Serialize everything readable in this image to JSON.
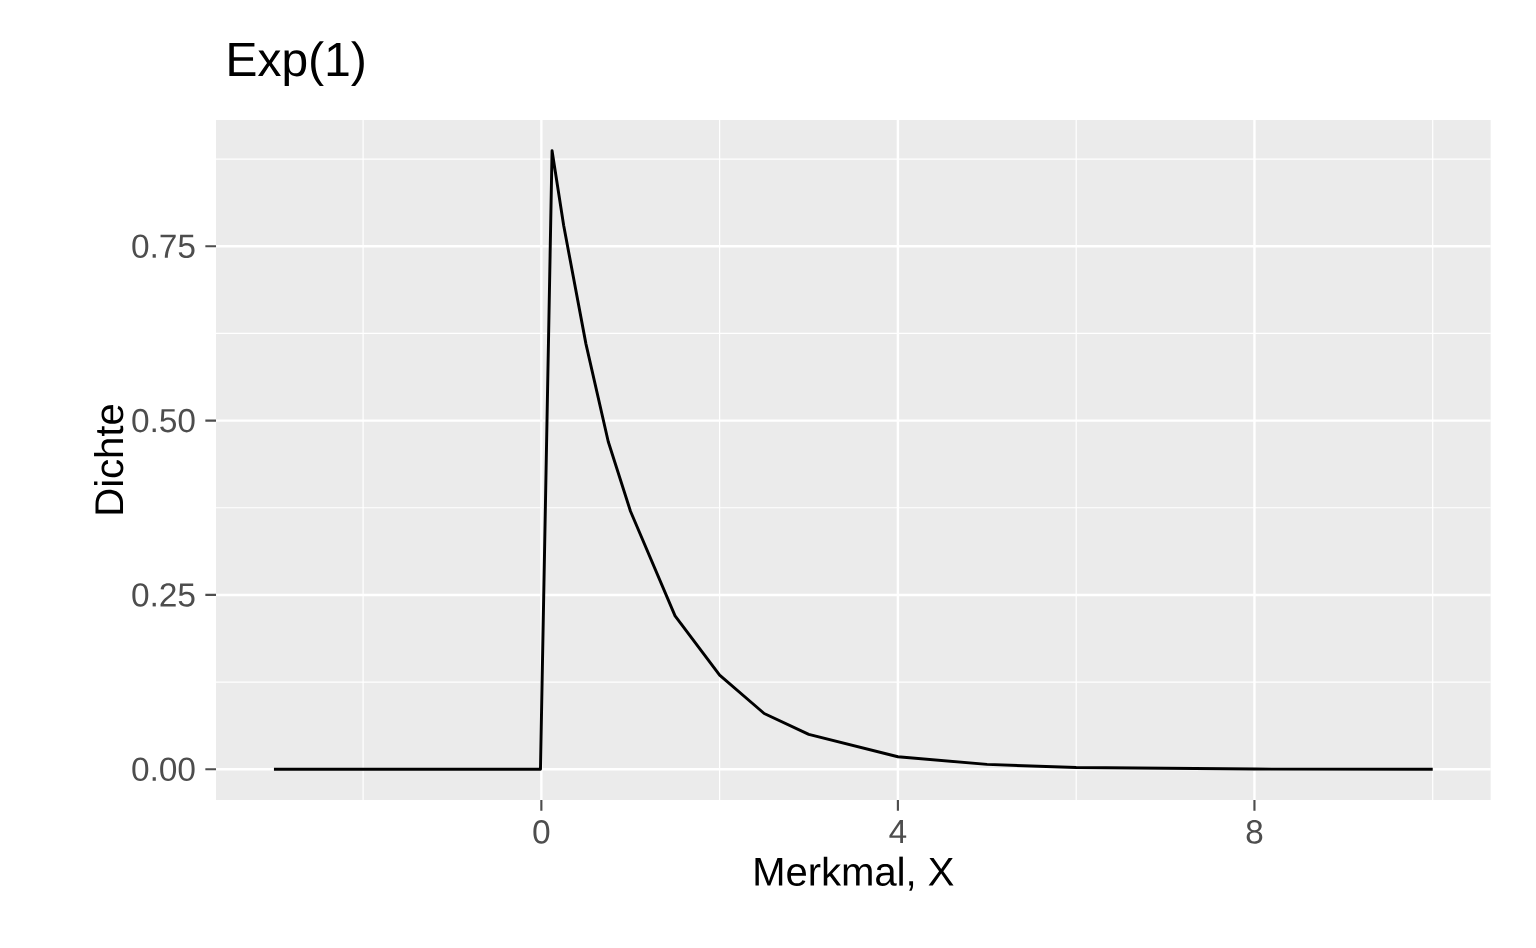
{
  "chart_data": {
    "type": "line",
    "title": "Exp(1)",
    "xlabel": "Merkmal, X",
    "ylabel": "Dichte",
    "x": [
      -3,
      -0.01,
      0.12,
      0.25,
      0.5,
      0.75,
      1,
      1.5,
      2,
      2.5,
      3,
      4,
      5,
      6,
      8,
      10
    ],
    "values": [
      0,
      0,
      0.887,
      0.78,
      0.61,
      0.47,
      0.37,
      0.22,
      0.135,
      0.08,
      0.05,
      0.018,
      0.007,
      0.0025,
      0.0003,
      0
    ],
    "color": "#000000",
    "xlim": [
      -3.65,
      10.65
    ],
    "ylim": [
      -0.044,
      0.931
    ],
    "xticks": [
      0,
      4,
      8
    ],
    "yticks": [
      {
        "value": 0,
        "label": "0.00"
      },
      {
        "value": 0.25,
        "label": "0.25"
      },
      {
        "value": 0.5,
        "label": "0.50"
      },
      {
        "value": 0.75,
        "label": "0.75"
      }
    ],
    "grid": true,
    "marker": "none",
    "line_style": "solid"
  }
}
